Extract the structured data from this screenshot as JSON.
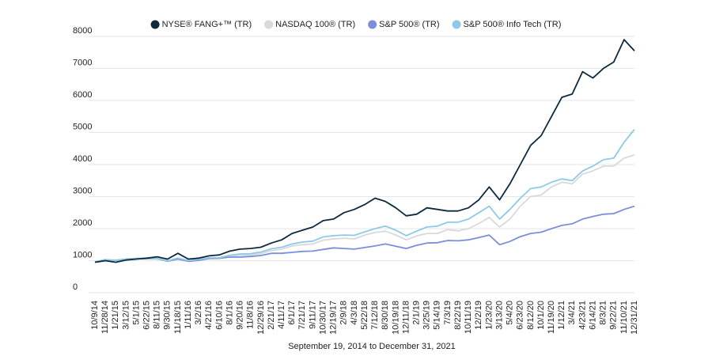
{
  "chart_data": {
    "type": "line",
    "x_label": "September 19, 2014 to December 31, 2021",
    "categories": [
      "10/9/14",
      "11/28/14",
      "1/21/15",
      "3/12/15",
      "5/1/15",
      "6/22/15",
      "8/11/15",
      "9/30/15",
      "11/18/15",
      "1/11/16",
      "3/2/16",
      "4/21/16",
      "6/10/16",
      "8/1/16",
      "9/20/16",
      "11/8/16",
      "12/29/16",
      "2/21/17",
      "4/11/17",
      "6/1/17",
      "7/21/17",
      "9/11/17",
      "10/30/17",
      "12/19/17",
      "2/9/18",
      "4/3/18",
      "5/22/18",
      "7/12/18",
      "8/30/18",
      "10/19/18",
      "12/11/18",
      "2/1/19",
      "3/25/19",
      "5/14/19",
      "7/3/19",
      "8/22/19",
      "10/11/19",
      "12/2/19",
      "1/23/20",
      "3/13/20",
      "5/4/20",
      "6/23/20",
      "8/12/20",
      "10/1/20",
      "11/19/20",
      "1/12/21",
      "3/4/21",
      "4/23/21",
      "6/14/21",
      "8/3/21",
      "9/22/21",
      "11/10/21",
      "12/31/21"
    ],
    "series": [
      {
        "name": "NYSE® FANG+™ (TR)",
        "color": "#0d2a3e",
        "values": [
          950,
          1000,
          950,
          1020,
          1050,
          1080,
          1120,
          1050,
          1230,
          1050,
          1080,
          1150,
          1180,
          1300,
          1360,
          1380,
          1420,
          1550,
          1650,
          1850,
          1950,
          2050,
          2250,
          2300,
          2500,
          2600,
          2750,
          2950,
          2850,
          2650,
          2400,
          2450,
          2650,
          2600,
          2550,
          2550,
          2650,
          2900,
          3300,
          2900,
          3400,
          4000,
          4600,
          4900,
          5500,
          6100,
          6200,
          6900,
          6700,
          7000,
          7200,
          7900,
          7550
        ]
      },
      {
        "name": "NASDAQ 100® (TR)",
        "color": "#d9d9d9",
        "values": [
          960,
          1020,
          1020,
          1060,
          1070,
          1080,
          1080,
          1000,
          1080,
          1000,
          1020,
          1060,
          1060,
          1140,
          1170,
          1180,
          1220,
          1310,
          1360,
          1460,
          1500,
          1520,
          1640,
          1680,
          1700,
          1680,
          1800,
          1880,
          1920,
          1800,
          1650,
          1770,
          1850,
          1850,
          1970,
          1930,
          2000,
          2160,
          2350,
          2050,
          2300,
          2700,
          3000,
          3050,
          3300,
          3450,
          3400,
          3700,
          3800,
          3950,
          3950,
          4200,
          4300
        ]
      },
      {
        "name": "S&P 500® (TR)",
        "color": "#7b8fdb",
        "values": [
          960,
          1030,
          1010,
          1040,
          1060,
          1060,
          1060,
          980,
          1050,
          980,
          1010,
          1070,
          1080,
          1110,
          1110,
          1130,
          1160,
          1230,
          1230,
          1260,
          1290,
          1300,
          1350,
          1400,
          1380,
          1360,
          1410,
          1460,
          1520,
          1450,
          1380,
          1480,
          1550,
          1560,
          1630,
          1620,
          1650,
          1720,
          1800,
          1500,
          1600,
          1750,
          1850,
          1890,
          2000,
          2100,
          2150,
          2300,
          2380,
          2450,
          2470,
          2600,
          2700
        ]
      },
      {
        "name": "S&P 500® Info Tech (TR)",
        "color": "#8ecae6",
        "values": [
          960,
          1030,
          1010,
          1050,
          1070,
          1070,
          1060,
          990,
          1080,
          1000,
          1040,
          1090,
          1090,
          1170,
          1210,
          1220,
          1270,
          1370,
          1420,
          1520,
          1580,
          1610,
          1740,
          1780,
          1800,
          1790,
          1900,
          2000,
          2080,
          1950,
          1780,
          1920,
          2050,
          2080,
          2200,
          2200,
          2300,
          2500,
          2700,
          2300,
          2600,
          2950,
          3250,
          3300,
          3450,
          3550,
          3500,
          3800,
          3950,
          4150,
          4200,
          4700,
          5100
        ]
      }
    ],
    "draw_order": [
      1,
      2,
      3,
      0
    ],
    "ylim": [
      0,
      8000
    ],
    "yticks": [
      0,
      1000,
      2000,
      3000,
      4000,
      5000,
      6000,
      7000,
      8000
    ],
    "grid": true
  }
}
